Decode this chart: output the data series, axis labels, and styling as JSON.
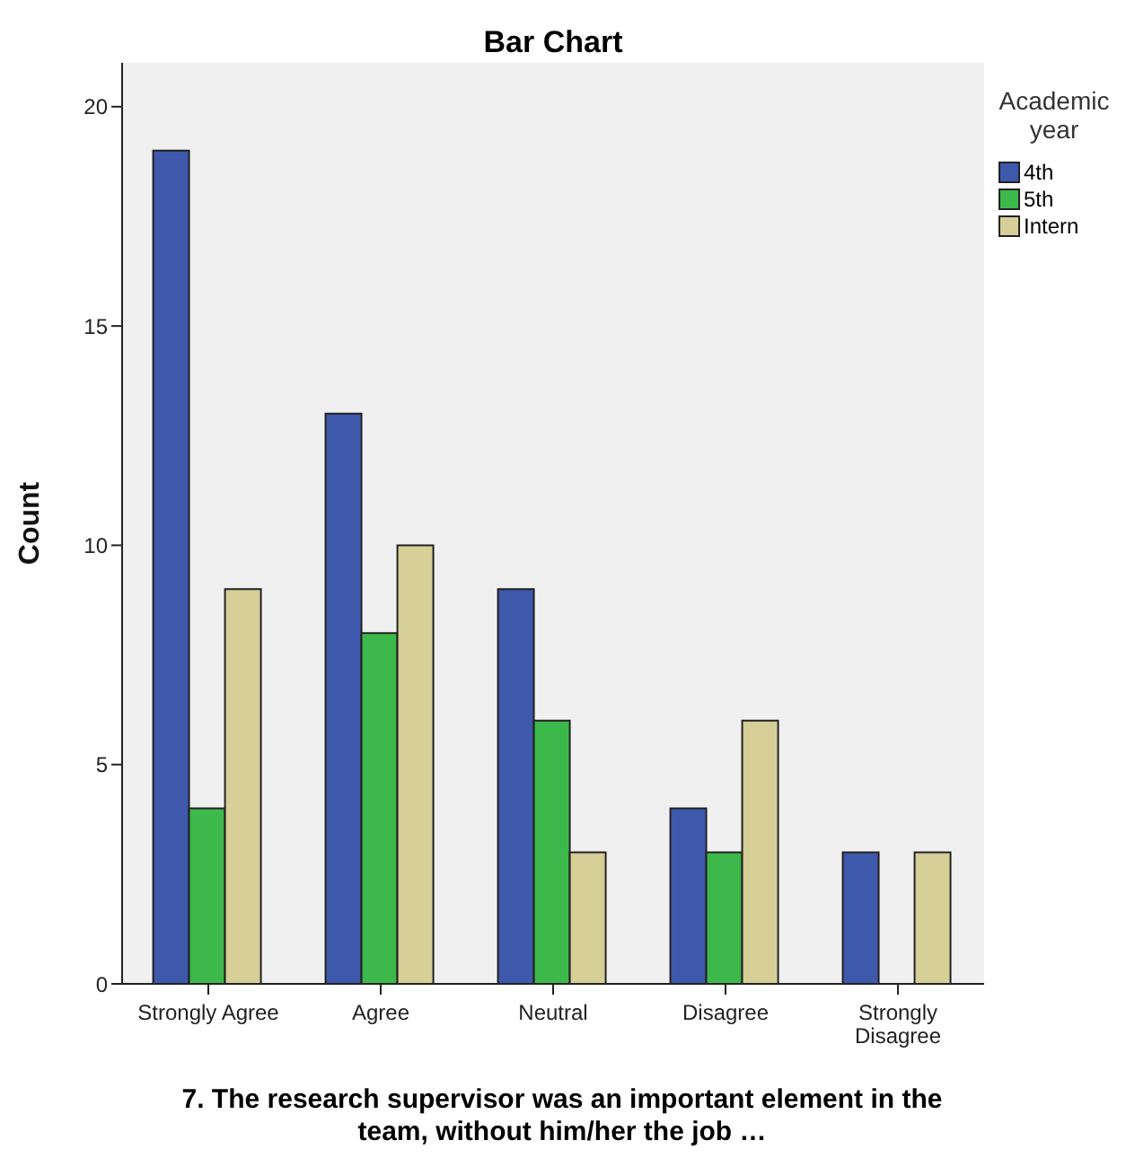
{
  "chart_data": {
    "type": "bar",
    "title": "Bar Chart",
    "xlabel": "7. The research supervisor was an important element in the team, without him/her the job …",
    "ylabel": "Count",
    "legend_title": "Academic year",
    "categories": [
      "Strongly Agree",
      "Agree",
      "Neutral",
      "Disagree",
      "Strongly Disagree"
    ],
    "series": [
      {
        "name": "4th",
        "color": "#3e58ac",
        "values": [
          19,
          13,
          9,
          4,
          3
        ]
      },
      {
        "name": "5th",
        "color": "#3cb94a",
        "values": [
          4,
          8,
          6,
          3,
          null
        ]
      },
      {
        "name": "Intern",
        "color": "#d6cf97",
        "values": [
          9,
          10,
          3,
          6,
          3
        ]
      }
    ],
    "ylim": [
      0,
      21
    ],
    "yticks": [
      0,
      5,
      10,
      15,
      20
    ],
    "grid": false,
    "legend": "top right"
  }
}
